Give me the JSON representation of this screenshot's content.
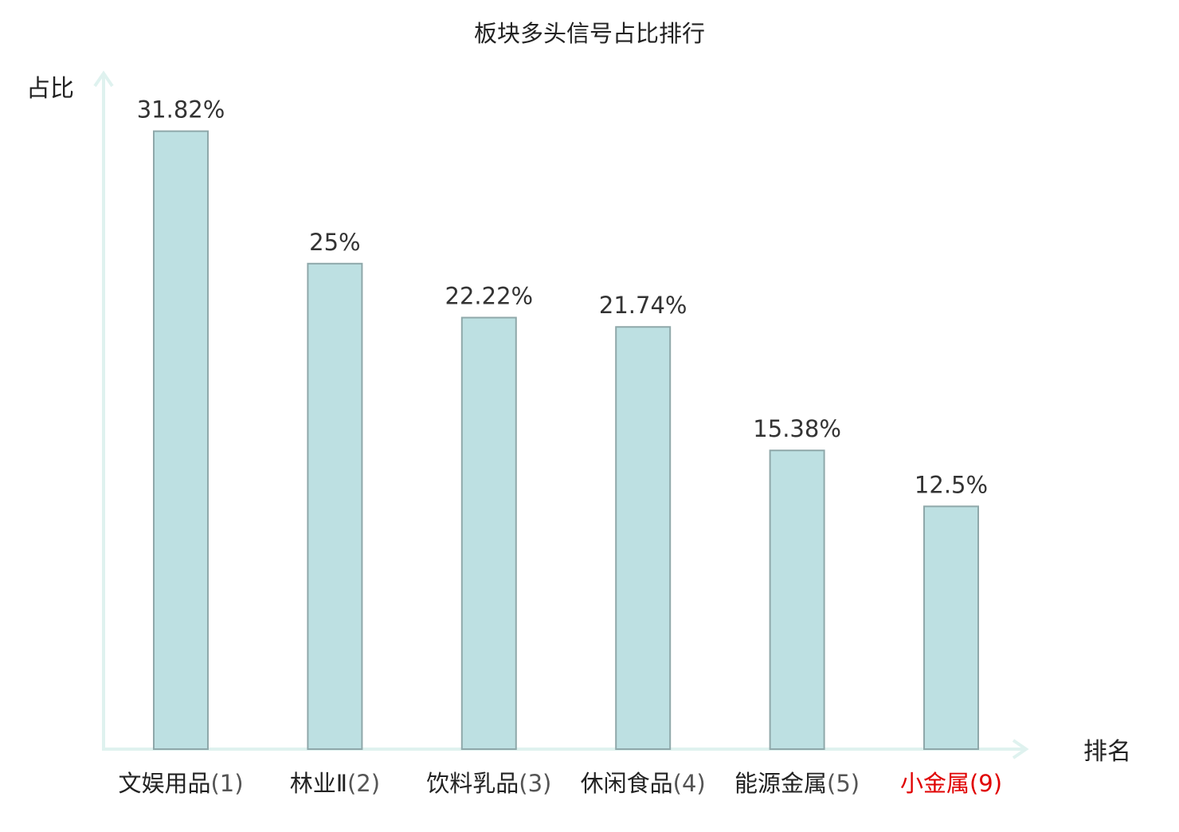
{
  "chart_data": {
    "type": "bar",
    "title": "板块多头信号占比排行",
    "ylabel": "占比",
    "xlabel": "排名",
    "categories": [
      "文娱用品",
      "林业Ⅱ",
      "饮料乳品",
      "休闲食品",
      "能源金属",
      "小金属"
    ],
    "ranks": [
      "(1)",
      "(2)",
      "(3)",
      "(4)",
      "(5)",
      "(9)"
    ],
    "values": [
      31.82,
      25,
      22.22,
      21.74,
      15.38,
      12.5
    ],
    "value_labels": [
      "31.82%",
      "25%",
      "22.22%",
      "21.74%",
      "15.38%",
      "12.5%"
    ],
    "highlight_index": 5,
    "ylim": [
      0,
      34.8
    ],
    "grid": false,
    "legend": "none"
  },
  "colors": {
    "bar_fill": "#bde0e2",
    "bar_stroke": "#8fa8aa",
    "axis": "#dff2ef",
    "text": "#222222",
    "value_text": "#333333",
    "highlight": "#e00000"
  }
}
